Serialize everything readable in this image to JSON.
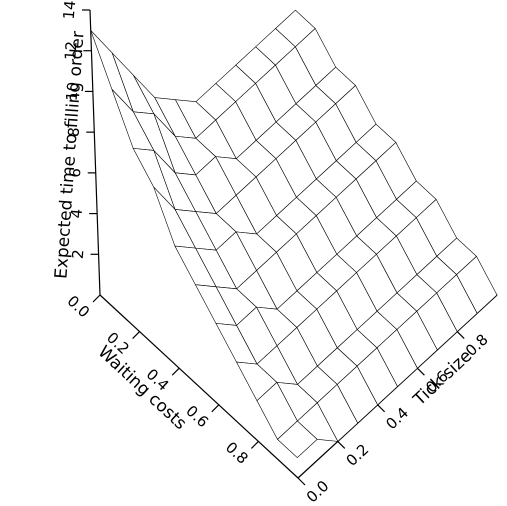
{
  "chart_data": {
    "type": "surface",
    "xlabel": "Tick size",
    "ylabel": "Waiting costs",
    "zlabel": "Expected time to filling order",
    "x": [
      0,
      0.1,
      0.2,
      0.3,
      0.4,
      0.5,
      0.6,
      0.7,
      0.8,
      0.9,
      1
    ],
    "y": [
      0,
      0.1,
      0.2,
      0.3,
      0.4,
      0.5,
      0.6,
      0.7,
      0.8,
      0.9,
      1
    ],
    "z": [
      [
        13,
        11,
        9,
        7,
        6,
        5,
        5,
        5,
        5,
        5,
        5
      ],
      [
        11,
        9,
        8,
        6,
        5,
        5,
        5,
        5,
        5,
        5,
        5
      ],
      [
        9,
        8,
        6,
        5,
        5,
        4,
        4,
        4,
        4,
        4,
        4
      ],
      [
        8,
        6,
        5,
        4,
        4,
        4,
        4,
        4,
        4,
        4,
        4
      ],
      [
        6,
        5,
        4,
        4,
        3,
        3,
        3,
        3,
        3,
        3,
        3
      ],
      [
        5,
        4,
        3,
        3,
        3,
        3,
        3,
        3,
        3,
        3,
        3
      ],
      [
        4,
        3,
        3,
        2,
        2,
        2,
        2,
        2,
        2,
        2,
        2
      ],
      [
        3,
        2,
        2,
        2,
        2,
        2,
        2,
        2,
        2,
        2,
        2
      ],
      [
        2,
        2,
        1,
        1,
        1,
        1,
        1,
        1,
        1,
        1,
        1
      ],
      [
        1,
        1,
        1,
        1,
        1,
        1,
        1,
        1,
        1,
        1,
        1
      ],
      [
        1,
        1,
        0,
        0,
        0,
        0,
        0,
        0,
        0,
        0,
        0
      ]
    ],
    "xlim": [
      0,
      1
    ],
    "ylim": [
      0,
      1
    ],
    "zlim": [
      0,
      14
    ],
    "xticks": [
      {
        "value": 0,
        "label": "0.0"
      },
      0.2,
      0.4,
      0.6,
      0.8
    ],
    "yticks": [
      {
        "value": 0,
        "label": "0.0"
      },
      0.2,
      0.4,
      0.6,
      0.8
    ],
    "zticks": [
      2,
      4,
      6,
      8,
      10,
      12,
      14
    ],
    "color": "#000000"
  }
}
